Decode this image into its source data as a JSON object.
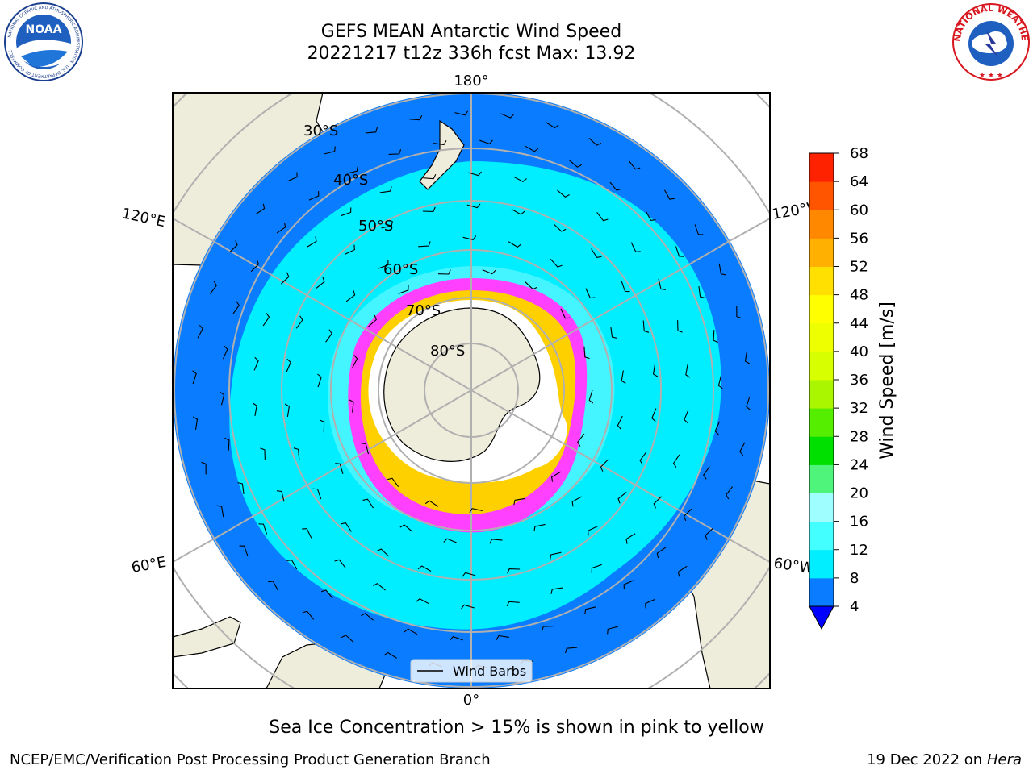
{
  "header": {
    "title_line1": "GEFS MEAN Antarctic Wind Speed",
    "title_line2": "20221217 t12z 336h fcst   Max: 13.92"
  },
  "logos": {
    "left": {
      "icon": "noaa-logo",
      "text": "NOAA",
      "ring_text": "NATIONAL OCEANIC AND ATMOSPHERIC ADMINISTRATION · U.S. DEPARTMENT OF COMMERCE"
    },
    "right": {
      "icon": "nws-logo",
      "ring_text": "NATIONAL WEATHER SERVICE"
    }
  },
  "map": {
    "projection": "south-polar-stereographic",
    "longitude_labels": {
      "top": "180°",
      "upper_left": "120°E",
      "upper_right": "120°W",
      "lower_left": "60°E",
      "lower_right": "60°W",
      "bottom": "0°"
    },
    "latitude_labels": [
      "30°S",
      "40°S",
      "50°S",
      "60°S",
      "70°S",
      "80°S"
    ],
    "legend": {
      "label": "Wind Barbs"
    },
    "colors": {
      "land": "#eeecda",
      "band_4_8": "#0a7cff",
      "band_8_12": "#00eeff",
      "band_12_16": "#44f5ff",
      "sea_ice": "#ff40ff",
      "graticule": "#b0b0b0"
    }
  },
  "colorbar": {
    "label": "Wind Speed [m/s]",
    "ticks": [
      "4",
      "8",
      "12",
      "16",
      "20",
      "24",
      "28",
      "32",
      "36",
      "40",
      "44",
      "48",
      "52",
      "56",
      "60",
      "64",
      "68"
    ],
    "colors": [
      "#0a7cff",
      "#00eeff",
      "#44ffff",
      "#9ffeff",
      "#4ef57a",
      "#00e000",
      "#55ee00",
      "#aaf500",
      "#d8ff00",
      "#eeff00",
      "#ffff00",
      "#ffe000",
      "#ffb000",
      "#ff8800",
      "#ff5500",
      "#ff2200"
    ],
    "under_color": "#0000ff"
  },
  "caption": "Sea Ice Concentration > 15% is shown in pink to yellow",
  "footer": {
    "left": "NCEP/EMC/Verification Post Processing Product Generation Branch",
    "date": "19 Dec 2022 on",
    "machine": "Hera"
  }
}
